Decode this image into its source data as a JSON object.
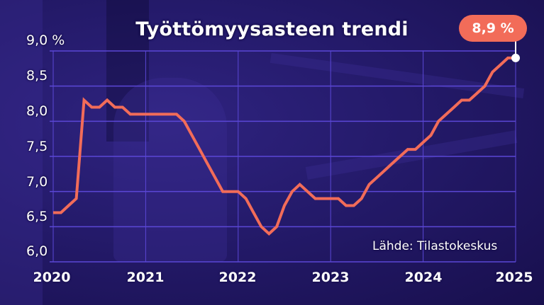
{
  "title": "Työttömyysasteen trendi",
  "badge": {
    "label": "8,9 %",
    "color": "#f26c59"
  },
  "source": "Lähde: Tilastokeskus",
  "y_axis": {
    "labels": [
      "9,0 %",
      "8,5",
      "8,0",
      "7,5",
      "7,0",
      "6,5",
      "6,0"
    ]
  },
  "x_axis": {
    "labels": [
      "2020",
      "2021",
      "2022",
      "2023",
      "2024",
      "2025"
    ]
  },
  "colors": {
    "line": "#f26c59",
    "grid": "#5b47d6",
    "background": "#241a6a",
    "text": "#ffffff"
  },
  "chart_data": {
    "type": "line",
    "title": "Työttömyysasteen trendi",
    "xlabel": "",
    "ylabel": "%",
    "ylim": [
      6.0,
      9.0
    ],
    "xlim": [
      2020,
      2025
    ],
    "grid": true,
    "legend": "none",
    "annotation": "8,9 %",
    "source": "Lähde: Tilastokeskus",
    "series": [
      {
        "name": "Työttömyysasteen trendi (%)",
        "x": [
          "2020-01",
          "2020-02",
          "2020-03",
          "2020-04",
          "2020-05",
          "2020-06",
          "2020-07",
          "2020-08",
          "2020-09",
          "2020-10",
          "2020-11",
          "2020-12",
          "2021-01",
          "2021-02",
          "2021-03",
          "2021-04",
          "2021-05",
          "2021-06",
          "2021-07",
          "2021-08",
          "2021-09",
          "2021-10",
          "2021-11",
          "2021-12",
          "2022-01",
          "2022-02",
          "2022-03",
          "2022-04",
          "2022-05",
          "2022-06",
          "2022-07",
          "2022-08",
          "2022-09",
          "2022-10",
          "2022-11",
          "2022-12",
          "2023-01",
          "2023-02",
          "2023-03",
          "2023-04",
          "2023-05",
          "2023-06",
          "2023-07",
          "2023-08",
          "2023-09",
          "2023-10",
          "2023-11",
          "2023-12",
          "2024-01",
          "2024-02",
          "2024-03",
          "2024-04",
          "2024-05",
          "2024-06",
          "2024-07",
          "2024-08",
          "2024-09",
          "2024-10",
          "2024-11",
          "2024-12",
          "2025-01"
        ],
        "values": [
          6.7,
          6.7,
          6.8,
          6.9,
          8.3,
          8.2,
          8.2,
          8.3,
          8.2,
          8.2,
          8.1,
          8.1,
          8.1,
          8.1,
          8.1,
          8.1,
          8.1,
          8.0,
          7.8,
          7.6,
          7.4,
          7.2,
          7.0,
          7.0,
          7.0,
          6.9,
          6.7,
          6.5,
          6.4,
          6.5,
          6.8,
          7.0,
          7.1,
          7.0,
          6.9,
          6.9,
          6.9,
          6.9,
          6.8,
          6.8,
          6.9,
          7.1,
          7.2,
          7.3,
          7.4,
          7.5,
          7.6,
          7.6,
          7.7,
          7.8,
          8.0,
          8.1,
          8.2,
          8.3,
          8.3,
          8.4,
          8.5,
          8.7,
          8.8,
          8.9,
          8.9
        ]
      }
    ]
  }
}
